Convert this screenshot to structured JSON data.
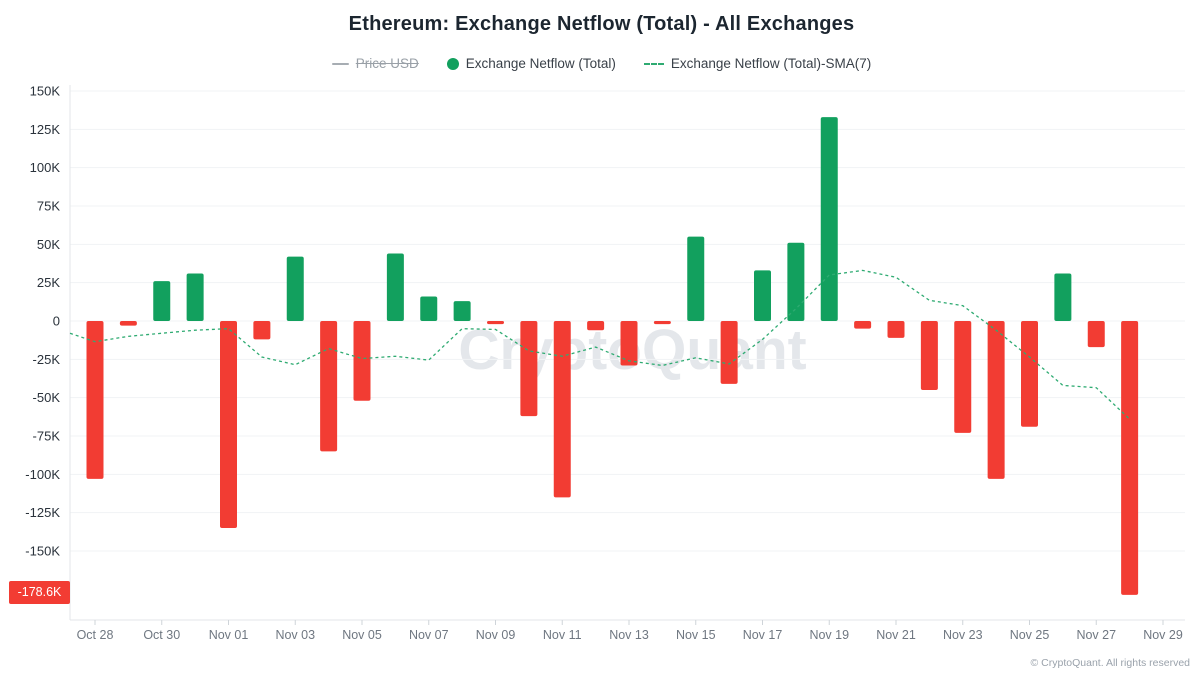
{
  "title": "Ethereum: Exchange Netflow (Total) - All Exchanges",
  "legend": {
    "price_usd": {
      "label": "Price USD",
      "state": "disabled"
    },
    "netflow": {
      "label": "Exchange Netflow (Total)",
      "state": "enabled"
    },
    "sma": {
      "label": "Exchange Netflow (Total)-SMA(7)",
      "state": "enabled"
    }
  },
  "badge": {
    "label": "-178.6K"
  },
  "watermark": "CryptoQuant",
  "footer": {
    "copyright": "© CryptoQuant. All rights reserved"
  },
  "colors": {
    "positive": "#12a05e",
    "negative": "#f23c33",
    "sma_line": "#2fab72",
    "price_disabled_marker": "#a7adb3",
    "gridline": "#f1f3f5",
    "axis_line": "#e3e6e8",
    "tick": "#cfd4d9",
    "y_label": "#2a323b",
    "x_label": "#6f7781",
    "badge_text": "#ffffff"
  },
  "chart_data": {
    "type": "bar",
    "title": "Ethereum: Exchange Netflow (Total) - All Exchanges",
    "xlabel": "",
    "ylabel": "",
    "grid": "horizontal-only",
    "legend_position": "top-center",
    "ylim": [
      -196,
      154
    ],
    "categories": [
      "Oct 28",
      "Oct 29",
      "Oct 30",
      "Oct 31",
      "Nov 01",
      "Nov 02",
      "Nov 03",
      "Nov 04",
      "Nov 05",
      "Nov 06",
      "Nov 07",
      "Nov 08",
      "Nov 09",
      "Nov 10",
      "Nov 11",
      "Nov 12",
      "Nov 13",
      "Nov 14",
      "Nov 15",
      "Nov 16",
      "Nov 17",
      "Nov 18",
      "Nov 19",
      "Nov 20",
      "Nov 21",
      "Nov 22",
      "Nov 23",
      "Nov 24",
      "Nov 25",
      "Nov 26",
      "Nov 27",
      "Nov 28",
      "Nov 29"
    ],
    "x_tick_step": 2,
    "y_axis": {
      "tick_values": [
        150,
        125,
        100,
        75,
        50,
        25,
        0,
        -25,
        -50,
        -75,
        -100,
        -125,
        -150
      ],
      "tick_labels": [
        "150K",
        "125K",
        "100K",
        "75K",
        "50K",
        "25K",
        "0",
        "-25K",
        "-50K",
        "-75K",
        "-100K",
        "-125K",
        "-150K"
      ]
    },
    "unit": "thousand ETH (K)",
    "series": [
      {
        "name": "Exchange Netflow (Total)",
        "type": "bar",
        "values": [
          -103,
          -3,
          26,
          31,
          -135,
          -12,
          42,
          -85,
          -52,
          44,
          16,
          13,
          -2,
          -62,
          -115,
          -6,
          -29,
          -2,
          55,
          -41,
          33,
          51,
          133,
          -5,
          -11,
          -45,
          -73,
          -103,
          -69,
          31,
          -17,
          -178.6,
          null
        ]
      },
      {
        "name": "Exchange Netflow (Total)-SMA(7)",
        "type": "line-dashed",
        "edge_start_value": -8,
        "values": [
          -13.5,
          -10,
          -8,
          -6,
          -5,
          -23.5,
          -28.5,
          -18,
          -24.5,
          -23,
          -25.5,
          -5,
          -5.5,
          -19.5,
          -23,
          -17,
          -26,
          -29,
          -24,
          -28,
          -12,
          8,
          30,
          33,
          28.5,
          13.5,
          10,
          -6,
          -23.5,
          -42,
          -43.5,
          -64,
          null
        ]
      },
      {
        "name": "Price USD",
        "type": "line",
        "visible": false,
        "values": []
      }
    ],
    "annotations": [
      {
        "type": "last-value-badge",
        "label": "-178.6K",
        "value": -178.6,
        "series": "Exchange Netflow (Total)"
      }
    ]
  }
}
